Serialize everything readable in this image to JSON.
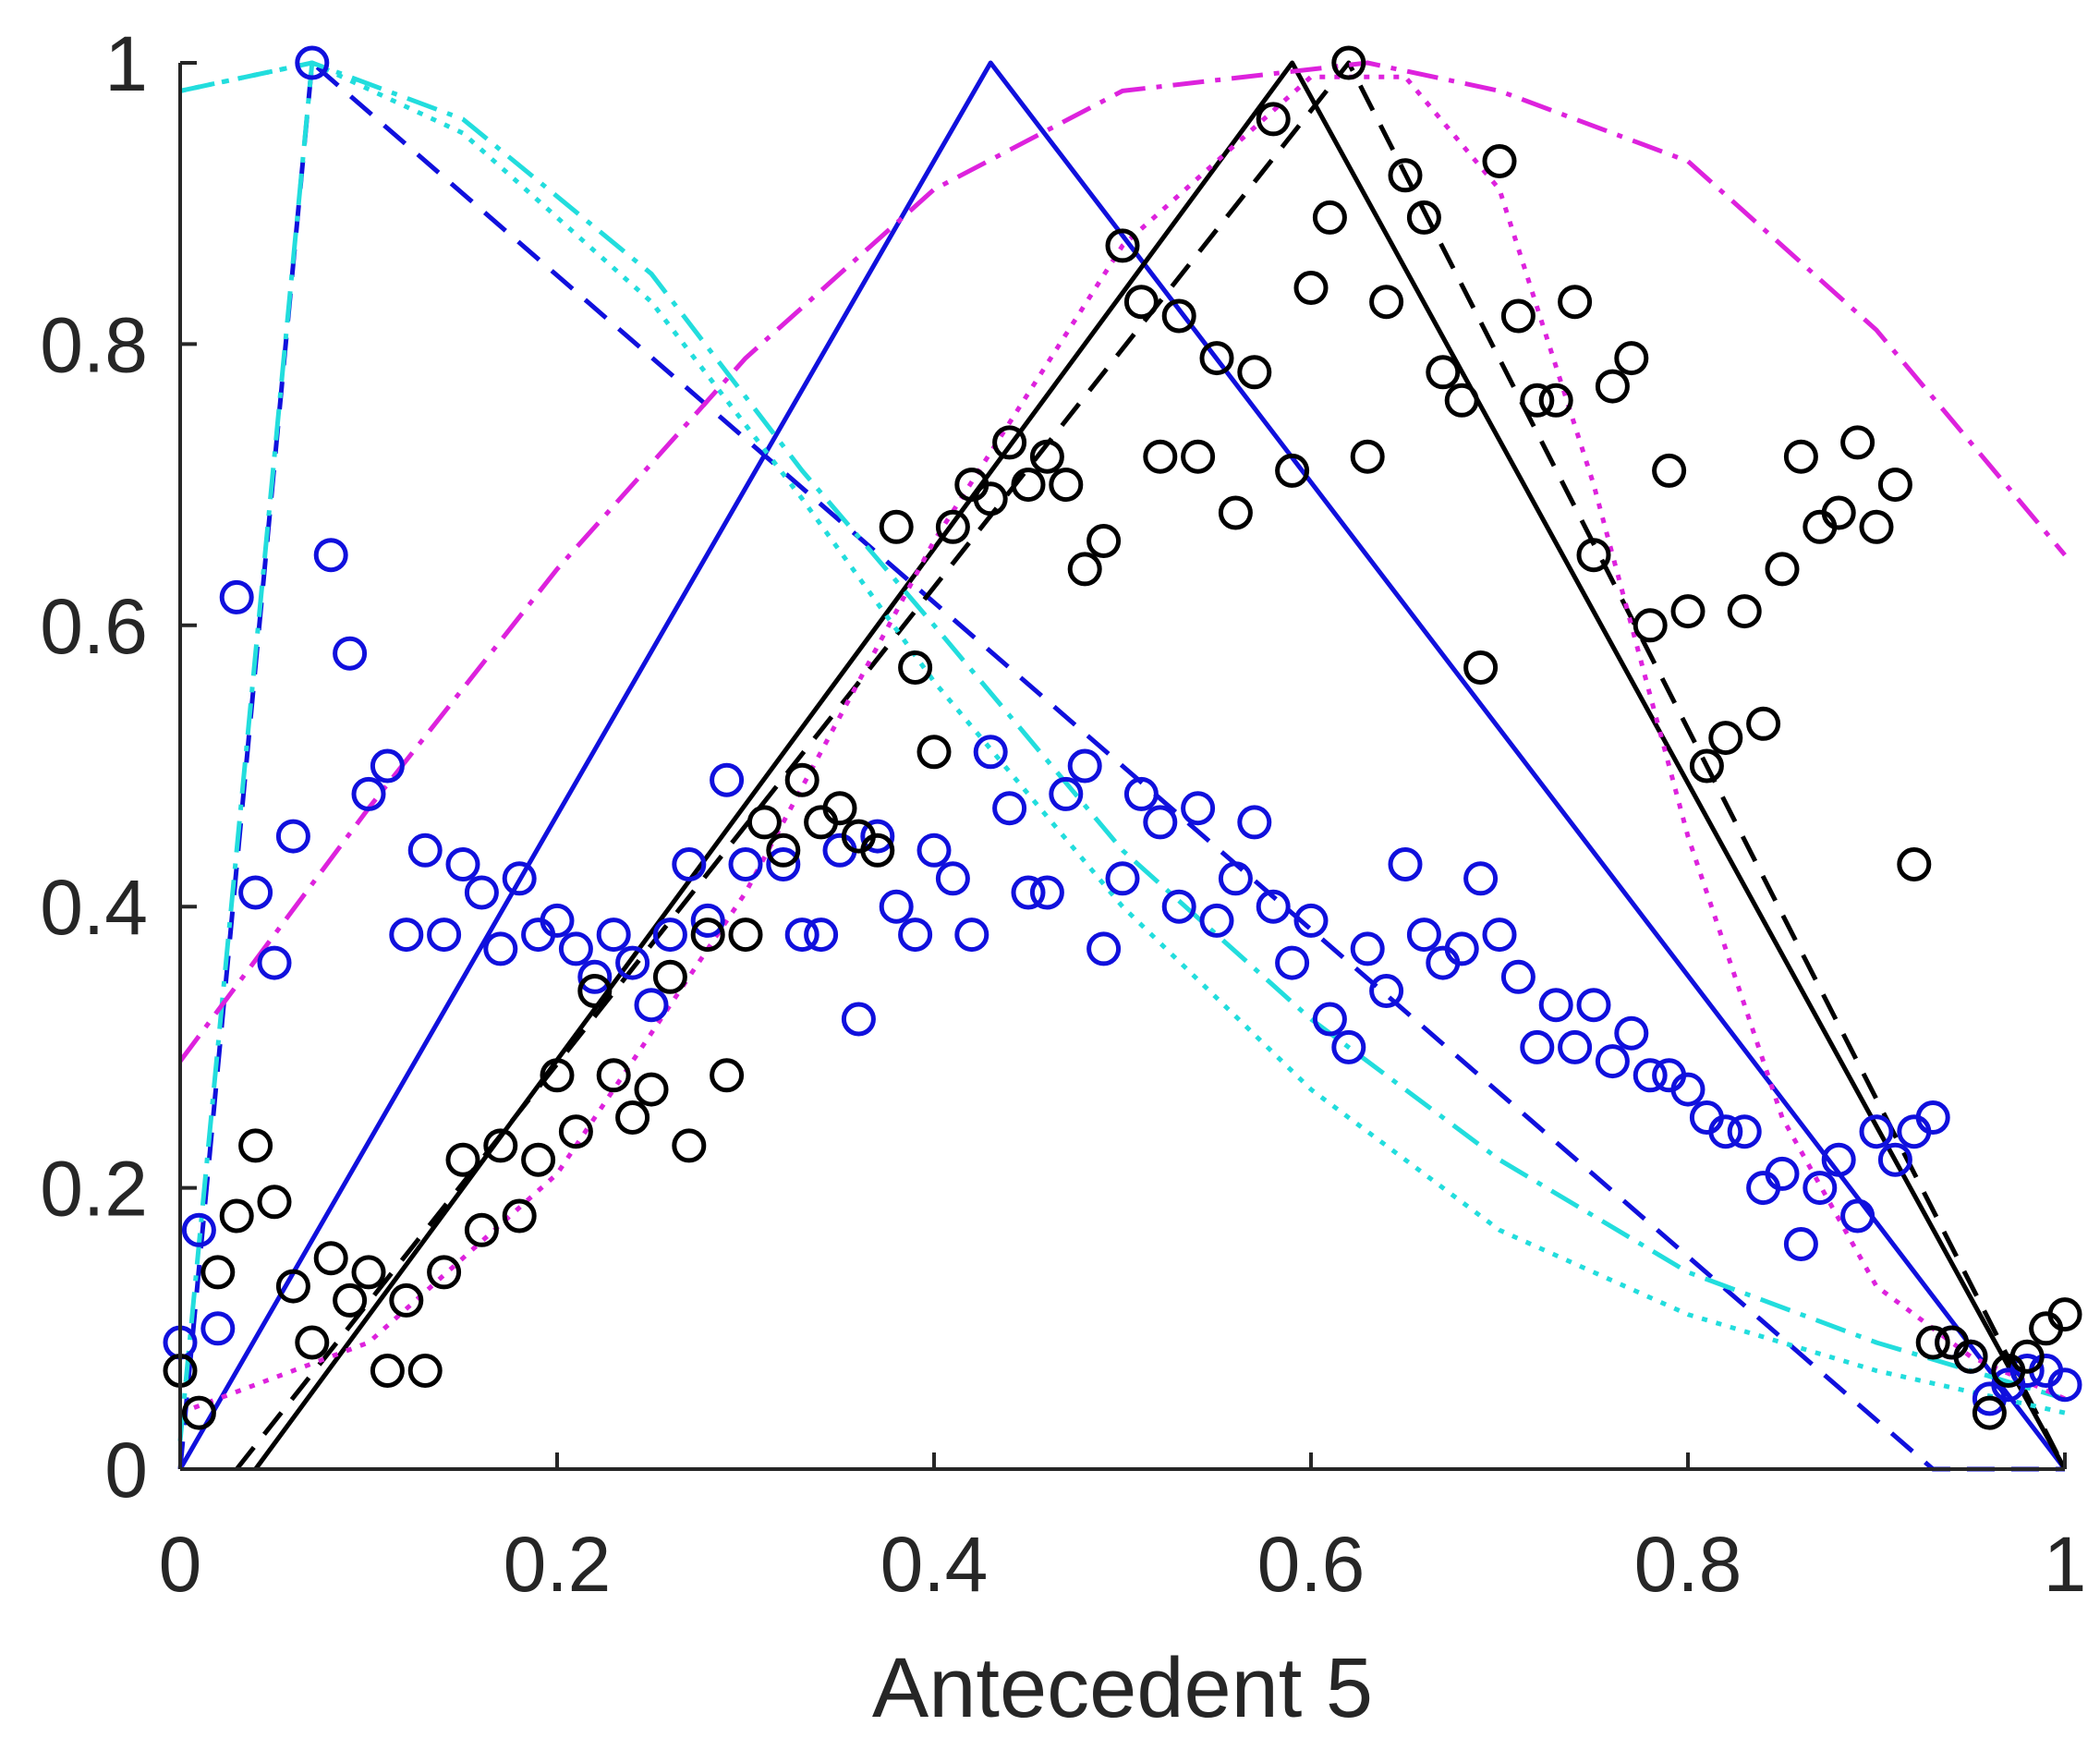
{
  "chart_data": {
    "type": "scatter",
    "title": "",
    "xlabel": "Antecedent 5",
    "ylabel": "",
    "xlim": [
      0,
      1
    ],
    "ylim": [
      0,
      1
    ],
    "grid": false,
    "x_ticks": [
      "0",
      "0.2",
      "0.4",
      "0.6",
      "0.8",
      "1"
    ],
    "y_ticks": [
      "0",
      "0.2",
      "0.4",
      "0.6",
      "0.8",
      "1"
    ],
    "colors": {
      "blue": "#1010dd",
      "black": "#000000",
      "cyan": "#22dddd",
      "magenta": "#dd22dd",
      "axis": "#262626"
    },
    "series": [
      {
        "name": "blue-data",
        "kind": "markers",
        "color": "#1010dd",
        "points": [
          [
            0,
            0.09
          ],
          [
            0.01,
            0.17
          ],
          [
            0.02,
            0.1
          ],
          [
            0.03,
            0.62
          ],
          [
            0.04,
            0.41
          ],
          [
            0.05,
            0.36
          ],
          [
            0.06,
            0.45
          ],
          [
            0.07,
            1.0
          ],
          [
            0.08,
            0.65
          ],
          [
            0.09,
            0.58
          ],
          [
            0.1,
            0.48
          ],
          [
            0.11,
            0.5
          ],
          [
            0.12,
            0.38
          ],
          [
            0.13,
            0.44
          ],
          [
            0.14,
            0.38
          ],
          [
            0.15,
            0.43
          ],
          [
            0.16,
            0.41
          ],
          [
            0.17,
            0.37
          ],
          [
            0.18,
            0.42
          ],
          [
            0.19,
            0.38
          ],
          [
            0.2,
            0.39
          ],
          [
            0.21,
            0.37
          ],
          [
            0.22,
            0.35
          ],
          [
            0.23,
            0.38
          ],
          [
            0.24,
            0.36
          ],
          [
            0.25,
            0.33
          ],
          [
            0.26,
            0.38
          ],
          [
            0.27,
            0.43
          ],
          [
            0.28,
            0.39
          ],
          [
            0.29,
            0.49
          ],
          [
            0.3,
            0.43
          ],
          [
            0.32,
            0.43
          ],
          [
            0.33,
            0.38
          ],
          [
            0.34,
            0.38
          ],
          [
            0.35,
            0.44
          ],
          [
            0.36,
            0.32
          ],
          [
            0.37,
            0.45
          ],
          [
            0.38,
            0.4
          ],
          [
            0.39,
            0.38
          ],
          [
            0.4,
            0.44
          ],
          [
            0.41,
            0.42
          ],
          [
            0.42,
            0.38
          ],
          [
            0.43,
            0.51
          ],
          [
            0.44,
            0.47
          ],
          [
            0.45,
            0.41
          ],
          [
            0.46,
            0.41
          ],
          [
            0.47,
            0.48
          ],
          [
            0.48,
            0.5
          ],
          [
            0.49,
            0.37
          ],
          [
            0.5,
            0.42
          ],
          [
            0.51,
            0.48
          ],
          [
            0.52,
            0.46
          ],
          [
            0.53,
            0.4
          ],
          [
            0.54,
            0.47
          ],
          [
            0.55,
            0.39
          ],
          [
            0.56,
            0.42
          ],
          [
            0.57,
            0.46
          ],
          [
            0.58,
            0.4
          ],
          [
            0.59,
            0.36
          ],
          [
            0.6,
            0.39
          ],
          [
            0.61,
            0.32
          ],
          [
            0.62,
            0.3
          ],
          [
            0.63,
            0.37
          ],
          [
            0.64,
            0.34
          ],
          [
            0.65,
            0.43
          ],
          [
            0.66,
            0.38
          ],
          [
            0.67,
            0.36
          ],
          [
            0.68,
            0.37
          ],
          [
            0.69,
            0.42
          ],
          [
            0.7,
            0.38
          ],
          [
            0.71,
            0.35
          ],
          [
            0.72,
            0.3
          ],
          [
            0.73,
            0.33
          ],
          [
            0.74,
            0.3
          ],
          [
            0.75,
            0.33
          ],
          [
            0.76,
            0.29
          ],
          [
            0.77,
            0.31
          ],
          [
            0.78,
            0.28
          ],
          [
            0.79,
            0.28
          ],
          [
            0.8,
            0.27
          ],
          [
            0.81,
            0.25
          ],
          [
            0.82,
            0.24
          ],
          [
            0.83,
            0.24
          ],
          [
            0.84,
            0.2
          ],
          [
            0.85,
            0.21
          ],
          [
            0.86,
            0.16
          ],
          [
            0.87,
            0.2
          ],
          [
            0.88,
            0.22
          ],
          [
            0.89,
            0.18
          ],
          [
            0.9,
            0.24
          ],
          [
            0.91,
            0.22
          ],
          [
            0.92,
            0.24
          ],
          [
            0.93,
            0.25
          ],
          [
            0.94,
            0.09
          ],
          [
            0.95,
            0.08
          ],
          [
            0.96,
            0.05
          ],
          [
            0.97,
            0.06
          ],
          [
            0.98,
            0.07
          ],
          [
            0.99,
            0.07
          ],
          [
            1.0,
            0.06
          ]
        ]
      },
      {
        "name": "black-data",
        "kind": "markers",
        "color": "#000000",
        "points": [
          [
            0,
            0.07
          ],
          [
            0.01,
            0.04
          ],
          [
            0.02,
            0.14
          ],
          [
            0.03,
            0.18
          ],
          [
            0.04,
            0.23
          ],
          [
            0.05,
            0.19
          ],
          [
            0.06,
            0.13
          ],
          [
            0.07,
            0.09
          ],
          [
            0.08,
            0.15
          ],
          [
            0.09,
            0.12
          ],
          [
            0.1,
            0.14
          ],
          [
            0.11,
            0.07
          ],
          [
            0.12,
            0.12
          ],
          [
            0.13,
            0.07
          ],
          [
            0.14,
            0.14
          ],
          [
            0.15,
            0.22
          ],
          [
            0.16,
            0.17
          ],
          [
            0.17,
            0.23
          ],
          [
            0.18,
            0.18
          ],
          [
            0.19,
            0.22
          ],
          [
            0.2,
            0.28
          ],
          [
            0.21,
            0.24
          ],
          [
            0.22,
            0.34
          ],
          [
            0.23,
            0.28
          ],
          [
            0.24,
            0.25
          ],
          [
            0.25,
            0.27
          ],
          [
            0.26,
            0.35
          ],
          [
            0.27,
            0.23
          ],
          [
            0.28,
            0.38
          ],
          [
            0.29,
            0.28
          ],
          [
            0.3,
            0.38
          ],
          [
            0.31,
            0.46
          ],
          [
            0.32,
            0.44
          ],
          [
            0.33,
            0.49
          ],
          [
            0.34,
            0.46
          ],
          [
            0.35,
            0.47
          ],
          [
            0.36,
            0.45
          ],
          [
            0.37,
            0.44
          ],
          [
            0.38,
            0.67
          ],
          [
            0.39,
            0.57
          ],
          [
            0.4,
            0.51
          ],
          [
            0.41,
            0.67
          ],
          [
            0.42,
            0.7
          ],
          [
            0.43,
            0.69
          ],
          [
            0.44,
            0.73
          ],
          [
            0.45,
            0.7
          ],
          [
            0.46,
            0.72
          ],
          [
            0.47,
            0.7
          ],
          [
            0.48,
            0.64
          ],
          [
            0.49,
            0.66
          ],
          [
            0.5,
            0.87
          ],
          [
            0.51,
            0.83
          ],
          [
            0.52,
            0.72
          ],
          [
            0.53,
            0.82
          ],
          [
            0.54,
            0.72
          ],
          [
            0.55,
            0.79
          ],
          [
            0.56,
            0.68
          ],
          [
            0.57,
            0.78
          ],
          [
            0.58,
            0.96
          ],
          [
            0.59,
            0.71
          ],
          [
            0.6,
            0.84
          ],
          [
            0.61,
            0.89
          ],
          [
            0.62,
            1.0
          ],
          [
            0.63,
            0.72
          ],
          [
            0.64,
            0.83
          ],
          [
            0.65,
            0.92
          ],
          [
            0.66,
            0.89
          ],
          [
            0.67,
            0.78
          ],
          [
            0.68,
            0.76
          ],
          [
            0.69,
            0.57
          ],
          [
            0.7,
            0.93
          ],
          [
            0.71,
            0.82
          ],
          [
            0.72,
            0.76
          ],
          [
            0.73,
            0.76
          ],
          [
            0.74,
            0.83
          ],
          [
            0.75,
            0.65
          ],
          [
            0.76,
            0.77
          ],
          [
            0.77,
            0.79
          ],
          [
            0.78,
            0.6
          ],
          [
            0.79,
            0.71
          ],
          [
            0.8,
            0.61
          ],
          [
            0.81,
            0.5
          ],
          [
            0.82,
            0.52
          ],
          [
            0.83,
            0.61
          ],
          [
            0.84,
            0.53
          ],
          [
            0.85,
            0.64
          ],
          [
            0.86,
            0.72
          ],
          [
            0.87,
            0.67
          ],
          [
            0.88,
            0.68
          ],
          [
            0.89,
            0.73
          ],
          [
            0.9,
            0.67
          ],
          [
            0.91,
            0.7
          ],
          [
            0.92,
            0.43
          ],
          [
            0.93,
            0.09
          ],
          [
            0.94,
            0.09
          ],
          [
            0.95,
            0.08
          ],
          [
            0.96,
            0.04
          ],
          [
            0.97,
            0.07
          ],
          [
            0.98,
            0.08
          ],
          [
            0.99,
            0.1
          ],
          [
            1.0,
            0.11
          ]
        ]
      },
      {
        "name": "blue-solid-triangle",
        "kind": "line",
        "color": "#1010dd",
        "dash": "solid",
        "points": [
          [
            0,
            0
          ],
          [
            0.43,
            1
          ],
          [
            1,
            0
          ]
        ]
      },
      {
        "name": "blue-dashed-triangle",
        "kind": "line",
        "color": "#1010dd",
        "dash": "dashed",
        "points": [
          [
            0,
            0
          ],
          [
            0.07,
            1
          ],
          [
            0.93,
            0
          ],
          [
            1,
            0
          ]
        ]
      },
      {
        "name": "black-solid-triangle",
        "kind": "line",
        "color": "#000000",
        "dash": "solid",
        "points": [
          [
            0.04,
            0
          ],
          [
            0.59,
            1
          ],
          [
            1,
            0
          ]
        ]
      },
      {
        "name": "black-dashed-triangle",
        "kind": "line",
        "color": "#000000",
        "dash": "dashed",
        "points": [
          [
            0.03,
            0
          ],
          [
            0.62,
            1
          ],
          [
            1,
            0
          ]
        ]
      },
      {
        "name": "cyan-gaussian-1",
        "kind": "line",
        "color": "#22dddd",
        "dash": "dashdot",
        "points": [
          [
            0,
            0.98
          ],
          [
            0.07,
            1.0
          ],
          [
            0.15,
            0.96
          ],
          [
            0.25,
            0.85
          ],
          [
            0.33,
            0.71
          ],
          [
            0.4,
            0.6
          ],
          [
            0.5,
            0.44
          ],
          [
            0.6,
            0.32
          ],
          [
            0.7,
            0.22
          ],
          [
            0.8,
            0.14
          ],
          [
            0.9,
            0.09
          ],
          [
            1,
            0.05
          ]
        ]
      },
      {
        "name": "cyan-gaussian-2",
        "kind": "line",
        "color": "#22dddd",
        "dash": "dotted",
        "points": [
          [
            0,
            0.98
          ],
          [
            0.07,
            1.0
          ],
          [
            0.15,
            0.95
          ],
          [
            0.25,
            0.83
          ],
          [
            0.33,
            0.69
          ],
          [
            0.4,
            0.56
          ],
          [
            0.5,
            0.4
          ],
          [
            0.6,
            0.27
          ],
          [
            0.7,
            0.17
          ],
          [
            0.8,
            0.11
          ],
          [
            0.9,
            0.07
          ],
          [
            1,
            0.04
          ]
        ]
      },
      {
        "name": "cyan-steep-rise",
        "kind": "line",
        "color": "#22dddd",
        "dash": "dashdot",
        "points": [
          [
            0,
            0.02
          ],
          [
            0.07,
            1.0
          ]
        ]
      },
      {
        "name": "magenta-wide-gaussian",
        "kind": "line",
        "color": "#dd22dd",
        "dash": "dashdot",
        "points": [
          [
            0,
            0.29
          ],
          [
            0.1,
            0.47
          ],
          [
            0.2,
            0.64
          ],
          [
            0.3,
            0.79
          ],
          [
            0.4,
            0.91
          ],
          [
            0.5,
            0.98
          ],
          [
            0.63,
            1.0
          ],
          [
            0.7,
            0.98
          ],
          [
            0.8,
            0.93
          ],
          [
            0.9,
            0.81
          ],
          [
            1,
            0.65
          ]
        ]
      },
      {
        "name": "magenta-narrow-gaussian",
        "kind": "line",
        "color": "#dd22dd",
        "dash": "dotted",
        "points": [
          [
            0,
            0.04
          ],
          [
            0.1,
            0.09
          ],
          [
            0.2,
            0.21
          ],
          [
            0.3,
            0.41
          ],
          [
            0.4,
            0.66
          ],
          [
            0.5,
            0.87
          ],
          [
            0.6,
            0.99
          ],
          [
            0.65,
            0.99
          ],
          [
            0.7,
            0.91
          ],
          [
            0.75,
            0.7
          ],
          [
            0.8,
            0.45
          ],
          [
            0.85,
            0.25
          ],
          [
            0.9,
            0.13
          ],
          [
            0.95,
            0.08
          ],
          [
            1,
            0.05
          ]
        ]
      }
    ]
  }
}
